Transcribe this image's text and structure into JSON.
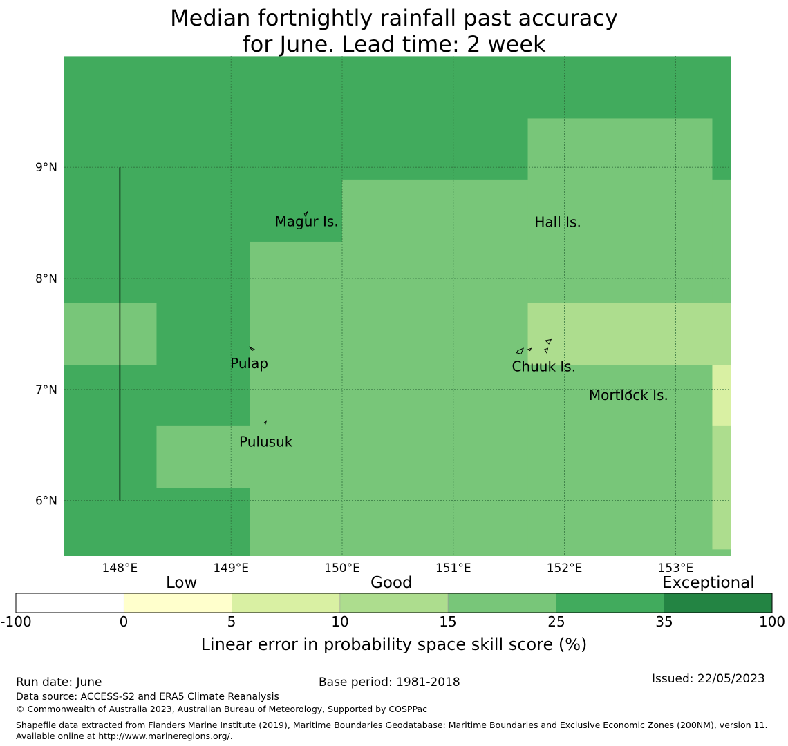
{
  "title": {
    "line1": "Median fortnightly rainfall past accuracy",
    "line2": "for June. Lead time: 2 week"
  },
  "map": {
    "lon_range": [
      147.5,
      153.5
    ],
    "lat_range": [
      5.5,
      10.0
    ],
    "lon_ticks": [
      {
        "value": 148,
        "label": "148°E"
      },
      {
        "value": 149,
        "label": "149°E"
      },
      {
        "value": 150,
        "label": "150°E"
      },
      {
        "value": 151,
        "label": "151°E"
      },
      {
        "value": 152,
        "label": "152°E"
      },
      {
        "value": 153,
        "label": "153°E"
      }
    ],
    "lat_ticks": [
      {
        "value": 9,
        "label": "9°N"
      },
      {
        "value": 8,
        "label": "8°N"
      },
      {
        "value": 7,
        "label": "7°N"
      },
      {
        "value": 6,
        "label": "6°N"
      }
    ],
    "grid": true,
    "skill_cells": [
      {
        "lon": [
          147.5,
          153.5
        ],
        "lat": [
          5.5,
          10.0
        ],
        "category": "25-35"
      },
      {
        "lon": [
          149.17,
          153.5
        ],
        "lat": [
          5.5,
          8.33
        ],
        "category": "15-25"
      },
      {
        "lon": [
          150.0,
          153.5
        ],
        "lat": [
          5.5,
          8.89
        ],
        "category": "15-25"
      },
      {
        "lon": [
          151.67,
          153.33
        ],
        "lat": [
          5.5,
          9.44
        ],
        "category": "15-25"
      },
      {
        "lon": [
          147.5,
          148.33
        ],
        "lat": [
          7.22,
          7.78
        ],
        "category": "15-25"
      },
      {
        "lon": [
          148.33,
          149.17
        ],
        "lat": [
          6.11,
          6.67
        ],
        "category": "15-25"
      },
      {
        "lon": [
          151.67,
          153.5
        ],
        "lat": [
          7.22,
          7.78
        ],
        "category": "10-15"
      },
      {
        "lon": [
          153.33,
          153.5
        ],
        "lat": [
          5.56,
          7.22
        ],
        "category": "10-15"
      },
      {
        "lon": [
          153.33,
          153.5
        ],
        "lat": [
          6.67,
          7.22
        ],
        "category": "5-10"
      }
    ],
    "boundary_line": {
      "lon": 148.0,
      "lat": [
        6.0,
        9.0
      ]
    },
    "islands": [
      {
        "name": "Magur Is.",
        "lon": 149.68,
        "lat": 8.57
      },
      {
        "name": "Hall Is.",
        "lon": 151.98,
        "lat": 8.5
      },
      {
        "name": "Pulap",
        "lon": 149.18,
        "lat": 7.36
      },
      {
        "name": "Chuuk Is.",
        "lon": 151.85,
        "lat": 7.37
      },
      {
        "name": "Mortlock Is.",
        "lon": 152.58,
        "lat": 6.98
      },
      {
        "name": "Pulusuk",
        "lon": 149.31,
        "lat": 6.69
      }
    ]
  },
  "colorbar": {
    "categories": [
      {
        "label": "Low",
        "center": 0.5
      },
      {
        "label": "Good",
        "center": 2.5
      },
      {
        "label": "Exceptional",
        "center": 6.5
      }
    ],
    "ticks": [
      "-100",
      "0",
      "5",
      "10",
      "15",
      "25",
      "35",
      "100"
    ],
    "colors": [
      "#ffffff",
      "#ffffcc",
      "#d9f0a3",
      "#addd8e",
      "#78c679",
      "#41ab5d",
      "#238443"
    ],
    "label": "Linear error in probability space skill score (%)"
  },
  "category_colors": {
    "5-10": "#d9f0a3",
    "10-15": "#addd8e",
    "15-25": "#78c679",
    "25-35": "#41ab5d"
  },
  "footer": {
    "run_date": "Run date: June",
    "base_period": "Base period: 1981-2018",
    "issued": "Issued: 22/05/2023",
    "data_source": "Data source: ACCESS-S2 and ERA5 Climate Reanalysis",
    "copyright": "© Commonwealth of Australia 2023, Australian Bureau of Meteorology, Supported by COSPPac",
    "shapefile": "Shapefile data extracted from Flanders Marine Institute (2019), Maritime Boundaries Geodatabase: Maritime Boundaries and Exclusive Economic Zones (200NM), version 11. Available online at http://www.marineregions.org/."
  }
}
